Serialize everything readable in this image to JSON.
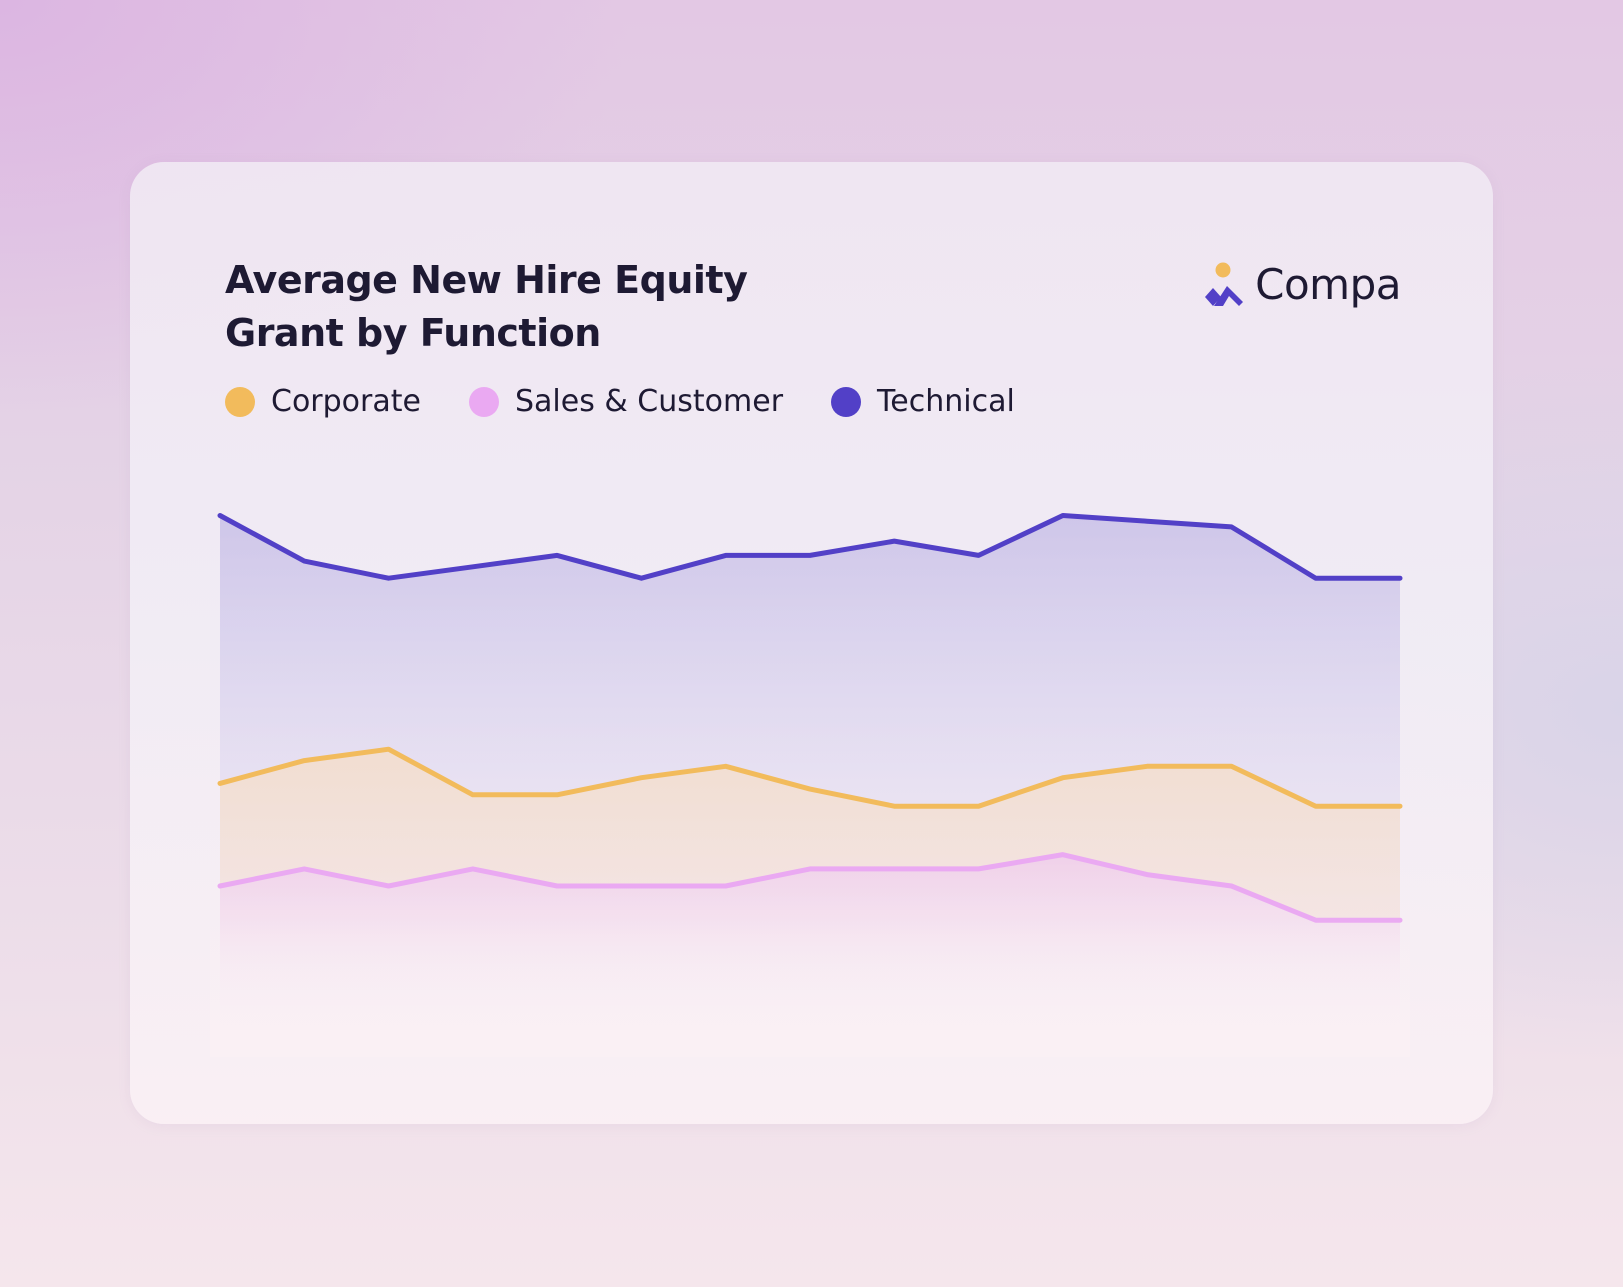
{
  "card": {
    "title_line1": "Average New Hire Equity",
    "title_line2": "Grant by Function"
  },
  "brand": {
    "name": "Compa",
    "icon": "compa-logo-icon",
    "colors": {
      "dot": "#f2bb5c",
      "chevron": "#5240c7"
    }
  },
  "legend": [
    {
      "label": "Corporate",
      "color": "#f2bb5c"
    },
    {
      "label": "Sales & Customer",
      "color": "#eaa9f2"
    },
    {
      "label": "Technical",
      "color": "#5240c7"
    }
  ],
  "chart_data": {
    "type": "area",
    "title": "Average New Hire Equity Grant by Function",
    "xlabel": "",
    "ylabel": "",
    "grid": false,
    "legend_placement": "top-left",
    "ylim": [
      0,
      100
    ],
    "x": [
      0,
      1,
      2,
      3,
      4,
      5,
      6,
      7,
      8,
      9,
      10,
      11,
      12,
      13,
      14
    ],
    "series": [
      {
        "name": "Technical",
        "color": "#5240c7",
        "x": [
          0,
          1,
          2,
          3,
          4,
          5,
          6,
          7,
          8,
          9,
          10,
          11,
          12,
          13,
          14
        ],
        "values": [
          95,
          87,
          84,
          86,
          88,
          84,
          88,
          88,
          90.5,
          88,
          95,
          94,
          93,
          84,
          84
        ]
      },
      {
        "name": "Corporate",
        "color": "#f2bb5c",
        "x": [
          0,
          1,
          2,
          3,
          4,
          5,
          6,
          7,
          8,
          9,
          10,
          11,
          12,
          13,
          14
        ],
        "values": [
          48,
          52,
          54,
          46,
          46,
          49,
          51,
          47,
          44,
          44,
          49,
          51,
          51,
          44,
          44
        ]
      },
      {
        "name": "Sales & Customer",
        "color": "#eaa9f2",
        "x": [
          0,
          1,
          2,
          3,
          4,
          5,
          6,
          7,
          8,
          9,
          10,
          11,
          12,
          13,
          14
        ],
        "values": [
          30,
          33,
          30,
          33,
          30,
          30,
          30,
          33,
          33,
          33,
          35.5,
          32,
          30,
          24,
          24
        ]
      }
    ]
  }
}
